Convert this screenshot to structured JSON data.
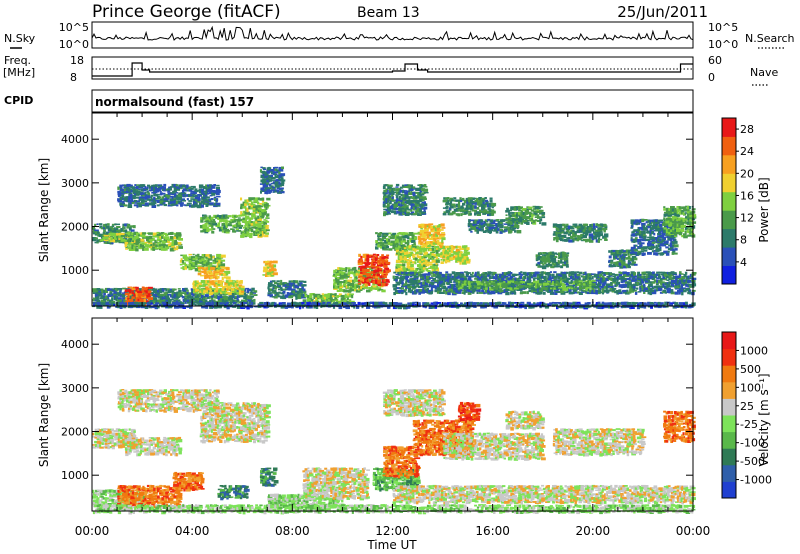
{
  "header": {
    "station": "Prince George (fitACF)",
    "beam": "Beam 13",
    "date": "25/Jun/2011"
  },
  "status_panels": {
    "nsky_label": "N.Sky",
    "nsky_ticks": [
      "10^5",
      "10^0"
    ],
    "nsearch_label": "N.Search",
    "nsearch_ticks": [
      "10^5",
      "10^0"
    ],
    "freq_label_line1": "Freq.",
    "freq_label_line2": "[MHz]",
    "freq_ticks": [
      "18",
      "8"
    ],
    "nave_label": "Nave",
    "nave_ticks": [
      "60",
      "0"
    ],
    "cpid_label": "CPID",
    "cpid_value": "normalsound (fast) 157"
  },
  "chart_data": [
    {
      "type": "heatmap",
      "name": "power-panel",
      "ylabel": "Slant Range [km]",
      "xlabel": "",
      "ylim": [
        180,
        4600
      ],
      "yticks": [
        "1000",
        "2000",
        "3000",
        "4000"
      ],
      "colorbar": {
        "label": "Power [dB]",
        "ticks": [
          "4",
          "8",
          "12",
          "16",
          "20",
          "24",
          "28"
        ],
        "colors": [
          "#1020e0",
          "#2a50b8",
          "#2c7a6a",
          "#4a9a4a",
          "#7fd040",
          "#f0d030",
          "#f7a020",
          "#f06010",
          "#e81818"
        ],
        "range": [
          0,
          30
        ]
      },
      "blobs": [
        {
          "t0": 0.0,
          "t1": 1.7,
          "r0": 1650,
          "r1": 2100,
          "v": 9
        },
        {
          "t0": 0.3,
          "t1": 1.2,
          "r0": 1700,
          "r1": 1900,
          "v": 16
        },
        {
          "t0": 1.3,
          "t1": 3.5,
          "r0": 1500,
          "r1": 1900,
          "v": 14
        },
        {
          "t0": 3.5,
          "t1": 5.2,
          "r0": 1050,
          "r1": 1400,
          "v": 14
        },
        {
          "t0": 4.3,
          "t1": 5.9,
          "r0": 1900,
          "r1": 2300,
          "v": 12
        },
        {
          "t0": 1.0,
          "t1": 5.0,
          "r0": 2500,
          "r1": 3000,
          "v": 6
        },
        {
          "t0": 5.9,
          "t1": 7.0,
          "r0": 1800,
          "r1": 2700,
          "v": 14
        },
        {
          "t0": 6.7,
          "t1": 7.6,
          "r0": 2800,
          "r1": 3400,
          "v": 6
        },
        {
          "t0": 0.0,
          "t1": 6.5,
          "r0": 280,
          "r1": 620,
          "v": 8
        },
        {
          "t0": 1.3,
          "t1": 2.3,
          "r0": 250,
          "r1": 650,
          "v": 27
        },
        {
          "t0": 4.0,
          "t1": 6.0,
          "r0": 500,
          "r1": 800,
          "v": 18
        },
        {
          "t0": 4.2,
          "t1": 5.4,
          "r0": 850,
          "r1": 1100,
          "v": 20
        },
        {
          "t0": 6.8,
          "t1": 7.3,
          "r0": 900,
          "r1": 1250,
          "v": 20
        },
        {
          "t0": 7.0,
          "t1": 8.5,
          "r0": 400,
          "r1": 800,
          "v": 7
        },
        {
          "t0": 8.4,
          "t1": 10.4,
          "r0": 250,
          "r1": 500,
          "v": 14
        },
        {
          "t0": 9.6,
          "t1": 11.6,
          "r0": 550,
          "r1": 1100,
          "v": 14
        },
        {
          "t0": 10.6,
          "t1": 11.8,
          "r0": 700,
          "r1": 1400,
          "v": 27
        },
        {
          "t0": 11.3,
          "t1": 12.9,
          "r0": 1500,
          "r1": 1900,
          "v": 12
        },
        {
          "t0": 12.1,
          "t1": 13.8,
          "r0": 1000,
          "r1": 1600,
          "v": 16
        },
        {
          "t0": 13.0,
          "t1": 14.0,
          "r0": 1600,
          "r1": 2100,
          "v": 20
        },
        {
          "t0": 13.8,
          "t1": 15.0,
          "r0": 1200,
          "r1": 1600,
          "v": 17
        },
        {
          "t0": 11.6,
          "t1": 13.3,
          "r0": 2300,
          "r1": 3000,
          "v": 8
        },
        {
          "t0": 14.0,
          "t1": 16.0,
          "r0": 2300,
          "r1": 2700,
          "v": 9
        },
        {
          "t0": 15.0,
          "t1": 17.0,
          "r0": 1900,
          "r1": 2200,
          "v": 7
        },
        {
          "t0": 16.5,
          "t1": 18.0,
          "r0": 2100,
          "r1": 2500,
          "v": 10
        },
        {
          "t0": 17.7,
          "t1": 19.0,
          "r0": 1100,
          "r1": 1450,
          "v": 9
        },
        {
          "t0": 18.4,
          "t1": 20.5,
          "r0": 1700,
          "r1": 2100,
          "v": 9
        },
        {
          "t0": 20.6,
          "t1": 21.7,
          "r0": 1100,
          "r1": 1500,
          "v": 8
        },
        {
          "t0": 21.5,
          "t1": 23.3,
          "r0": 1400,
          "r1": 2200,
          "v": 6
        },
        {
          "t0": 22.8,
          "t1": 24.0,
          "r0": 1800,
          "r1": 2500,
          "v": 12
        },
        {
          "t0": 12.0,
          "t1": 24.0,
          "r0": 500,
          "r1": 1000,
          "v": 7
        },
        {
          "t0": 14.5,
          "t1": 20.0,
          "r0": 600,
          "r1": 800,
          "v": 12
        },
        {
          "t0": 0.0,
          "t1": 24.0,
          "r0": 180,
          "r1": 300,
          "v": 5
        }
      ]
    },
    {
      "type": "heatmap",
      "name": "velocity-panel",
      "ylabel": "Slant Range [km]",
      "xlabel": "Time UT",
      "ylim": [
        180,
        4600
      ],
      "yticks": [
        "1000",
        "2000",
        "3000",
        "4000"
      ],
      "xticks": [
        "00:00",
        "04:00",
        "08:00",
        "12:00",
        "16:00",
        "20:00",
        "00:00"
      ],
      "xlim": [
        0,
        24
      ],
      "colorbar": {
        "label": "Velocity [m s⁻¹]",
        "ticks": [
          "1000",
          "500",
          "100",
          "25",
          "-25",
          "-100",
          "-500",
          "-1000"
        ],
        "colors": [
          "#2040d0",
          "#2f5faa",
          "#2f7a55",
          "#59b84a",
          "#7de35a",
          "#c8c8c8",
          "#f0a030",
          "#f07a10",
          "#f03010",
          "#e81818"
        ],
        "range": [
          -1000,
          1000
        ]
      },
      "blobs": [
        {
          "t0": 0.0,
          "t1": 1.7,
          "r0": 1650,
          "r1": 2100,
          "v": 5
        },
        {
          "t0": 1.3,
          "t1": 3.5,
          "r0": 1500,
          "r1": 1900,
          "v": 5
        },
        {
          "t0": 4.3,
          "t1": 7.0,
          "r0": 1800,
          "r1": 2700,
          "v": 5
        },
        {
          "t0": 1.0,
          "t1": 5.0,
          "r0": 2500,
          "r1": 3000,
          "v": 5
        },
        {
          "t0": 0.0,
          "t1": 2.0,
          "r0": 350,
          "r1": 700,
          "v": 4
        },
        {
          "t0": 1.0,
          "t1": 3.5,
          "r0": 300,
          "r1": 800,
          "v": 7
        },
        {
          "t0": 3.2,
          "t1": 4.4,
          "r0": 700,
          "r1": 1100,
          "v": 7
        },
        {
          "t0": 5.0,
          "t1": 6.2,
          "r0": 500,
          "r1": 800,
          "v": 2
        },
        {
          "t0": 6.7,
          "t1": 7.3,
          "r0": 800,
          "r1": 1200,
          "v": 2
        },
        {
          "t0": 7.0,
          "t1": 10.0,
          "r0": 300,
          "r1": 600,
          "v": 4
        },
        {
          "t0": 8.4,
          "t1": 11.0,
          "r0": 500,
          "r1": 1200,
          "v": 5
        },
        {
          "t0": 11.2,
          "t1": 13.0,
          "r0": 700,
          "r1": 1200,
          "v": 3
        },
        {
          "t0": 11.6,
          "t1": 13.0,
          "r0": 1000,
          "r1": 1700,
          "v": 7
        },
        {
          "t0": 12.8,
          "t1": 15.2,
          "r0": 1500,
          "r1": 2300,
          "v": 7
        },
        {
          "t0": 14.6,
          "t1": 15.4,
          "r0": 2300,
          "r1": 2700,
          "v": 8
        },
        {
          "t0": 11.6,
          "t1": 14.0,
          "r0": 2400,
          "r1": 3000,
          "v": 5
        },
        {
          "t0": 14.0,
          "t1": 18.0,
          "r0": 1400,
          "r1": 2000,
          "v": 5
        },
        {
          "t0": 16.5,
          "t1": 18.0,
          "r0": 2100,
          "r1": 2500,
          "v": 5
        },
        {
          "t0": 18.4,
          "t1": 22.0,
          "r0": 1500,
          "r1": 2100,
          "v": 5
        },
        {
          "t0": 22.8,
          "t1": 24.0,
          "r0": 1800,
          "r1": 2500,
          "v": 7
        },
        {
          "t0": 12.0,
          "t1": 24.0,
          "r0": 400,
          "r1": 800,
          "v": 5
        },
        {
          "t0": 0.0,
          "t1": 24.0,
          "r0": 180,
          "r1": 360,
          "v": 4
        }
      ]
    }
  ]
}
